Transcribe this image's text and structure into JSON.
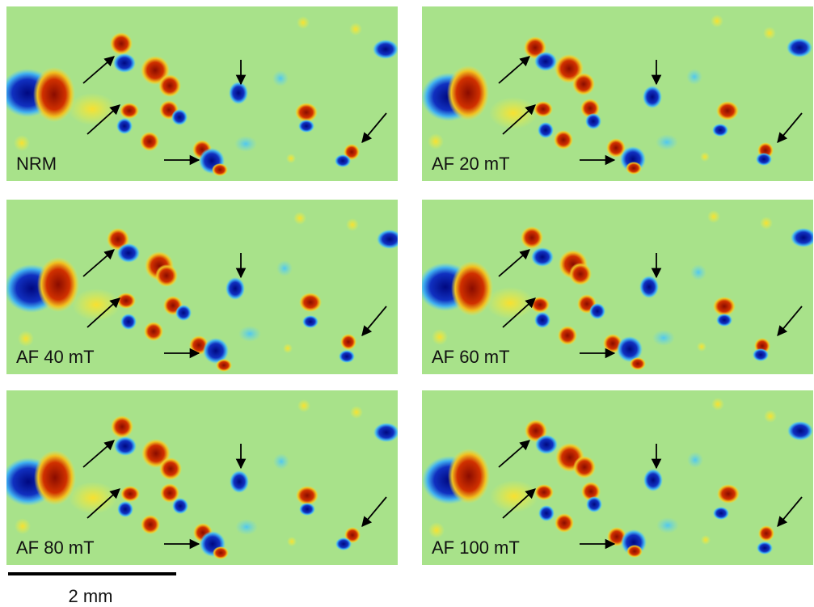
{
  "panels": [
    {
      "label": "NRM"
    },
    {
      "label": "AF 20 mT"
    },
    {
      "label": "AF 40 mT"
    },
    {
      "label": "AF 60 mT"
    },
    {
      "label": "AF 80 mT"
    },
    {
      "label": "AF 100 mT"
    }
  ],
  "scale_bar": {
    "label": "2 mm"
  }
}
